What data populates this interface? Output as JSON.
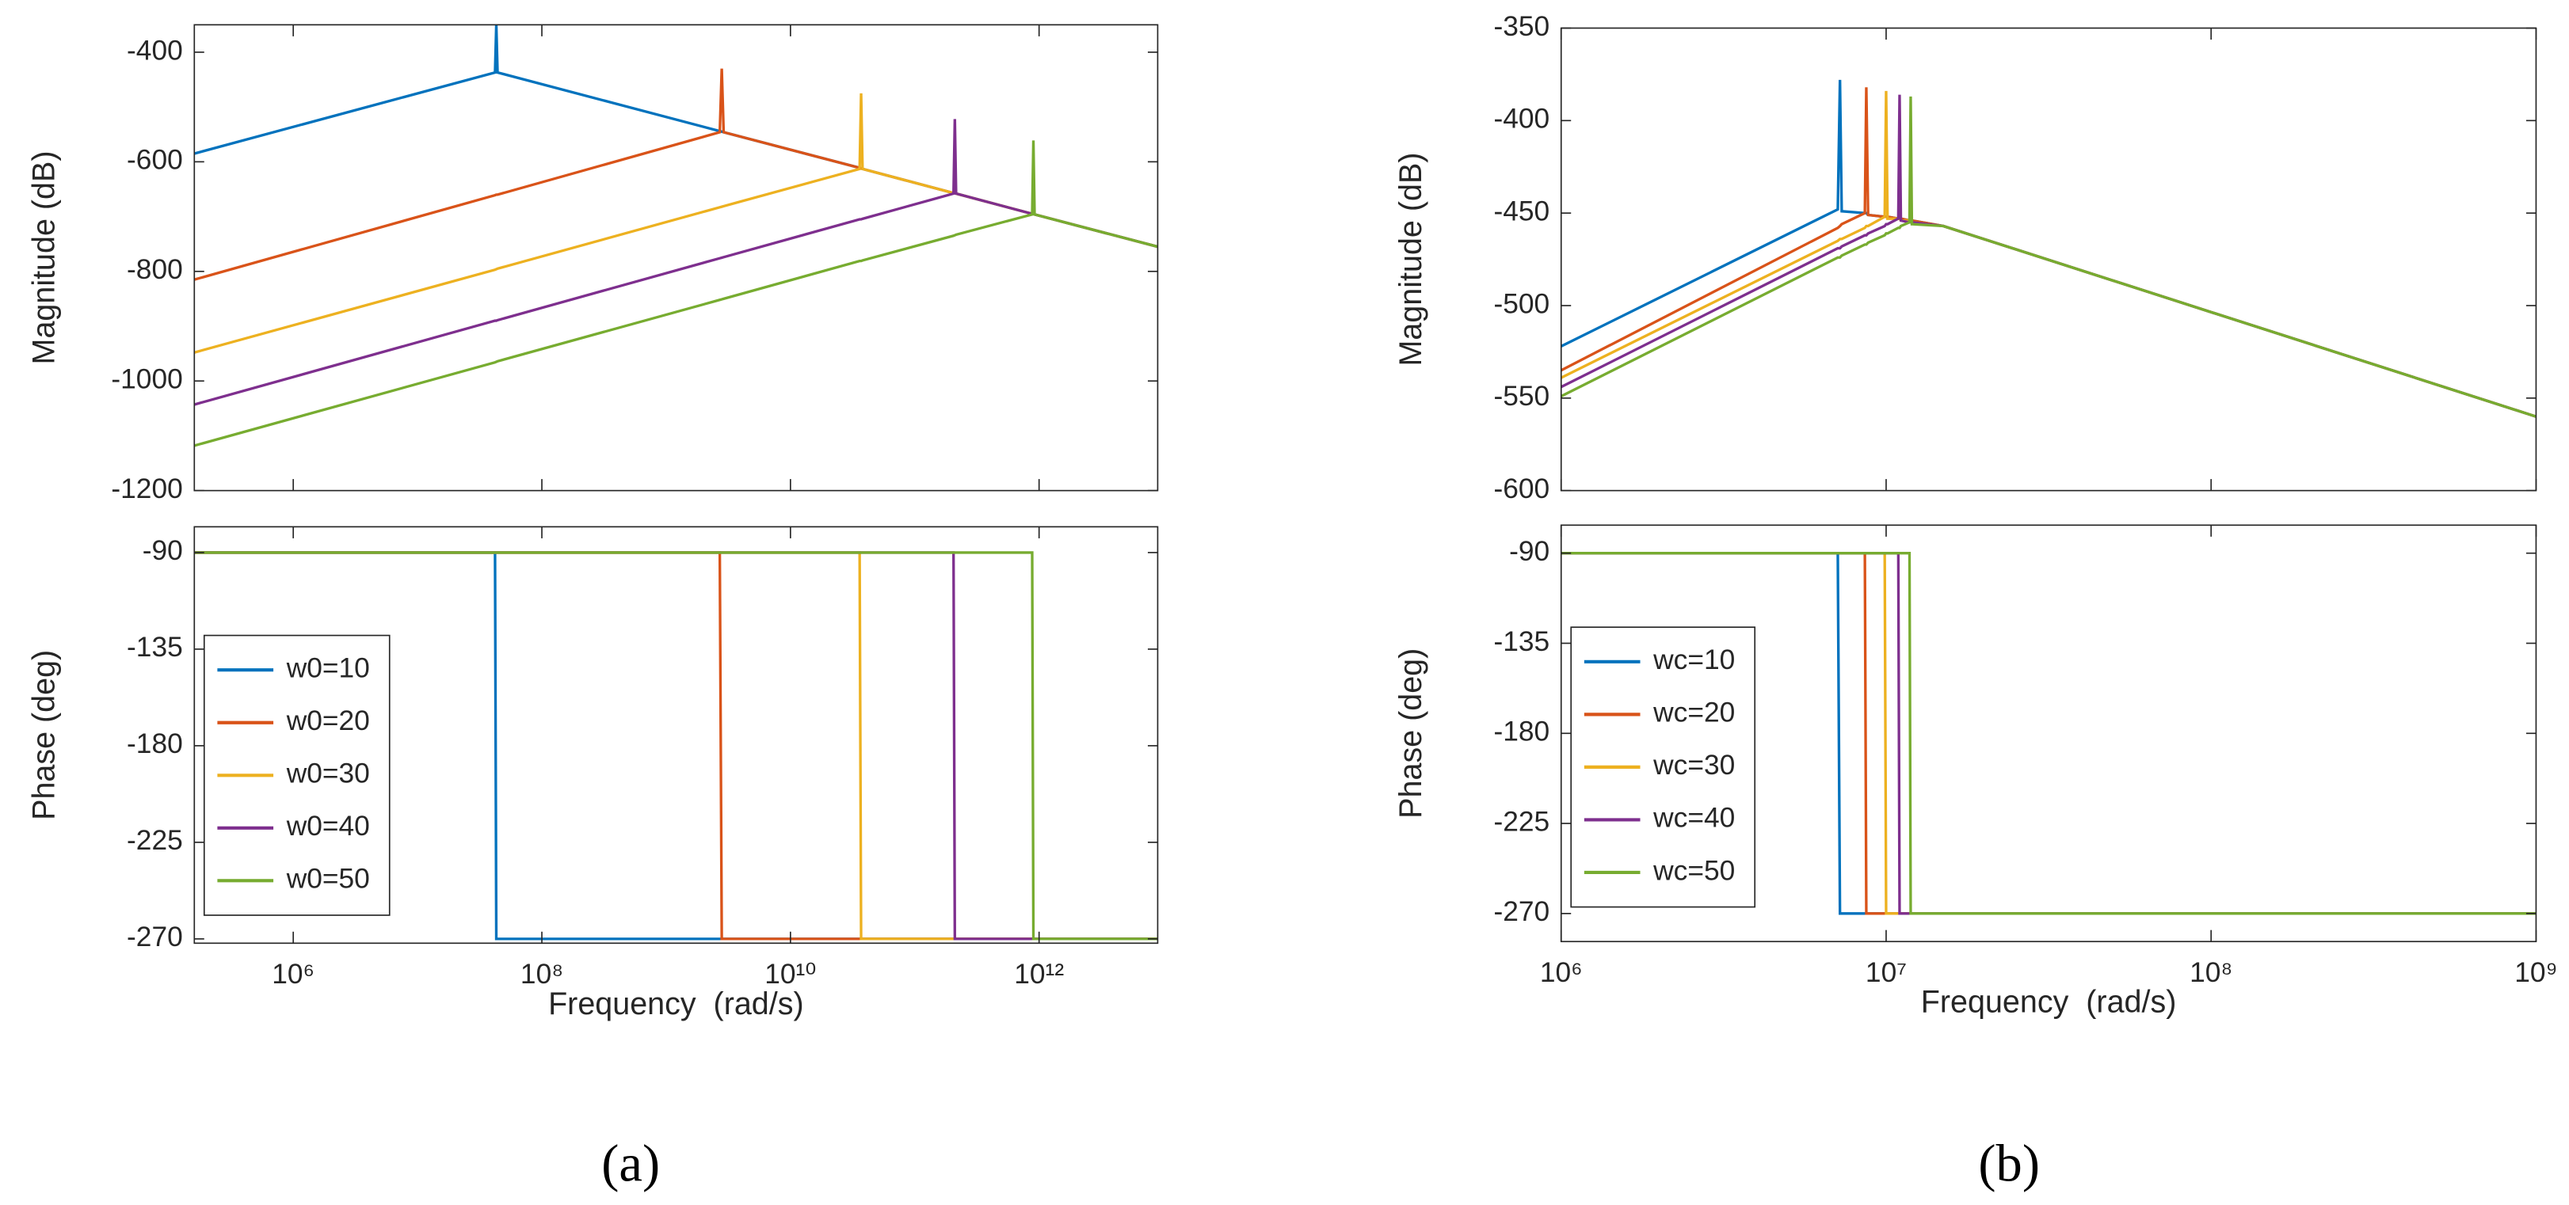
{
  "captions": [
    "(a)",
    "(b)"
  ],
  "chart_data": [
    {
      "type": "line",
      "x_scale": "log",
      "ylabel": "Magnitude (dB)",
      "xlim": [
        160000.0,
        9000000000000.0
      ],
      "ylim": [
        -1200,
        -350
      ],
      "xticks": [
        1000000.0,
        100000000.0,
        10000000000.0,
        1000000000000.0
      ],
      "yticks": [
        -1200,
        -1000,
        -800,
        -600,
        -400
      ],
      "x": [
        160000.0,
        42000000.0,
        43000000.0,
        44000000.0,
        2700000000.0,
        2800000000.0,
        2900000000.0,
        36000000000.0,
        37000000000.0,
        38000000000.0,
        205000000000.0,
        210000000000.0,
        215000000000.0,
        880000000000.0,
        900000000000.0,
        920000000000.0,
        9000000000000.0
      ],
      "series": [
        {
          "color": "#0072bd",
          "values": [
            -585,
            -437,
            -350,
            -437,
            -544,
            -545,
            -546,
            -611,
            -612,
            -613,
            -657,
            -657,
            -658,
            -695,
            -695,
            -696,
            -755
          ]
        },
        {
          "color": "#d95319",
          "values": [
            -815,
            -661,
            -660,
            -660,
            -546,
            -430,
            -546,
            -611,
            -612,
            -613,
            -657,
            -657,
            -658,
            -695,
            -695,
            -696,
            -755
          ]
        },
        {
          "color": "#edb120",
          "values": [
            -948,
            -797,
            -796,
            -795,
            -683,
            -682,
            -681,
            -613,
            -475,
            -613,
            -657,
            -657,
            -658,
            -695,
            -695,
            -696,
            -755
          ]
        },
        {
          "color": "#7e2f8e",
          "values": [
            -1043,
            -890,
            -890,
            -889,
            -776,
            -775,
            -774,
            -705,
            -705,
            -704,
            -658,
            -522,
            -658,
            -695,
            -695,
            -696,
            -755
          ]
        },
        {
          "color": "#77ac30",
          "values": [
            -1118,
            -966,
            -965,
            -964,
            -852,
            -851,
            -850,
            -781,
            -781,
            -780,
            -735,
            -734,
            -733,
            -696,
            -561,
            -696,
            -755
          ]
        }
      ]
    },
    {
      "type": "line",
      "x_scale": "log",
      "ylabel": "Phase (deg)",
      "xlabel": "Frequency  (rad/s)",
      "legend": "lower left",
      "xlim": [
        160000.0,
        9000000000000.0
      ],
      "ylim": [
        -272,
        -78
      ],
      "xticks": [
        {
          "value": 1000000.0,
          "label": "10⁶"
        },
        {
          "value": 100000000.0,
          "label": "10⁸"
        },
        {
          "value": 10000000000.0,
          "label": "10¹⁰"
        },
        {
          "value": 1000000000000.0,
          "label": "10¹²"
        }
      ],
      "yticks": [
        -270,
        -225,
        -180,
        -135,
        -90
      ],
      "x": [
        160000.0,
        42000000.0,
        43000000.0,
        44000000.0,
        2700000000.0,
        2800000000.0,
        2900000000.0,
        36000000000.0,
        37000000000.0,
        38000000000.0,
        205000000000.0,
        210000000000.0,
        215000000000.0,
        880000000000.0,
        900000000000.0,
        920000000000.0,
        9000000000000.0
      ],
      "series": [
        {
          "name": "w0=10",
          "color": "#0072bd",
          "values": [
            -90,
            -90,
            -270,
            -270,
            -270,
            -270,
            -270,
            -270,
            -270,
            -270,
            -270,
            -270,
            -270,
            -270,
            -270,
            -270,
            -270
          ]
        },
        {
          "name": "w0=20",
          "color": "#d95319",
          "values": [
            -90,
            -90,
            -90,
            -90,
            -90,
            -270,
            -270,
            -270,
            -270,
            -270,
            -270,
            -270,
            -270,
            -270,
            -270,
            -270,
            -270
          ]
        },
        {
          "name": "w0=30",
          "color": "#edb120",
          "values": [
            -90,
            -90,
            -90,
            -90,
            -90,
            -90,
            -90,
            -90,
            -270,
            -270,
            -270,
            -270,
            -270,
            -270,
            -270,
            -270,
            -270
          ]
        },
        {
          "name": "w0=40",
          "color": "#7e2f8e",
          "values": [
            -90,
            -90,
            -90,
            -90,
            -90,
            -90,
            -90,
            -90,
            -90,
            -90,
            -90,
            -270,
            -270,
            -270,
            -270,
            -270,
            -270
          ]
        },
        {
          "name": "w0=50",
          "color": "#77ac30",
          "values": [
            -90,
            -90,
            -90,
            -90,
            -90,
            -90,
            -90,
            -90,
            -90,
            -90,
            -90,
            -90,
            -90,
            -90,
            -270,
            -270,
            -270
          ]
        }
      ]
    },
    {
      "type": "line",
      "x_scale": "log",
      "ylabel": "Magnitude (dB)",
      "xlim": [
        1000000.0,
        1000000000.0
      ],
      "ylim": [
        -600,
        -350
      ],
      "xticks": [
        1000000.0,
        10000000.0,
        100000000.0,
        1000000000.0
      ],
      "yticks": [
        -600,
        -550,
        -500,
        -450,
        -400,
        -350
      ],
      "x": [
        1000000.0,
        7100000.0,
        7210000.0,
        7300000.0,
        8600000.0,
        8690000.0,
        8800000.0,
        9900000.0,
        10000000.0,
        10100000.0,
        10900000.0,
        11000000.0,
        11100000.0,
        11800000.0,
        11900000.0,
        12000000.0,
        15000000.0,
        1000000000.0
      ],
      "series": [
        {
          "color": "#0072bd",
          "values": [
            -522,
            -448,
            -378,
            -449,
            -450,
            -450,
            -451,
            -452,
            -452,
            -452,
            -453,
            -453,
            -453,
            -454,
            -454,
            -454,
            -457,
            -560
          ]
        },
        {
          "color": "#d95319",
          "values": [
            -535,
            -458,
            -457,
            -456,
            -450,
            -382,
            -451,
            -452,
            -452,
            -452,
            -453,
            -453,
            -453,
            -454,
            -454,
            -454,
            -457,
            -560
          ]
        },
        {
          "color": "#edb120",
          "values": [
            -539,
            -465,
            -464,
            -464,
            -458,
            -457,
            -457,
            -452,
            -384,
            -453,
            -453,
            -453,
            -454,
            -454,
            -454,
            -455,
            -457,
            -560
          ]
        },
        {
          "color": "#7e2f8e",
          "values": [
            -544,
            -469,
            -469,
            -468,
            -462,
            -462,
            -461,
            -457,
            -456,
            -456,
            -453,
            -386,
            -454,
            -455,
            -455,
            -455,
            -457,
            -560
          ]
        },
        {
          "color": "#77ac30",
          "values": [
            -549,
            -474,
            -474,
            -473,
            -467,
            -467,
            -466,
            -462,
            -461,
            -461,
            -458,
            -458,
            -457,
            -455,
            -387,
            -456,
            -457,
            -560
          ]
        }
      ]
    },
    {
      "type": "line",
      "x_scale": "log",
      "ylabel": "Phase (deg)",
      "xlabel": "Frequency  (rad/s)",
      "legend": "upper left",
      "xlim": [
        1000000.0,
        1000000000.0
      ],
      "ylim": [
        -284,
        -76
      ],
      "xticks": [
        {
          "value": 1000000.0,
          "label": "10⁶"
        },
        {
          "value": 10000000.0,
          "label": "10⁷"
        },
        {
          "value": 100000000.0,
          "label": "10⁸"
        },
        {
          "value": 1000000000.0,
          "label": "10⁹"
        }
      ],
      "yticks": [
        -270,
        -225,
        -180,
        -135,
        -90
      ],
      "x": [
        1000000.0,
        7100000.0,
        7210000.0,
        7300000.0,
        8600000.0,
        8690000.0,
        8800000.0,
        9900000.0,
        10000000.0,
        10100000.0,
        10900000.0,
        11000000.0,
        11100000.0,
        11800000.0,
        11900000.0,
        12000000.0,
        15000000.0,
        1000000000.0
      ],
      "series": [
        {
          "name": "wc=10",
          "color": "#0072bd",
          "values": [
            -90,
            -90,
            -270,
            -270,
            -270,
            -270,
            -270,
            -270,
            -270,
            -270,
            -270,
            -270,
            -270,
            -270,
            -270,
            -270,
            -270,
            -270
          ]
        },
        {
          "name": "wc=20",
          "color": "#d95319",
          "values": [
            -90,
            -90,
            -90,
            -90,
            -90,
            -270,
            -270,
            -270,
            -270,
            -270,
            -270,
            -270,
            -270,
            -270,
            -270,
            -270,
            -270,
            -270
          ]
        },
        {
          "name": "wc=30",
          "color": "#edb120",
          "values": [
            -90,
            -90,
            -90,
            -90,
            -90,
            -90,
            -90,
            -90,
            -270,
            -270,
            -270,
            -270,
            -270,
            -270,
            -270,
            -270,
            -270,
            -270
          ]
        },
        {
          "name": "wc=40",
          "color": "#7e2f8e",
          "values": [
            -90,
            -90,
            -90,
            -90,
            -90,
            -90,
            -90,
            -90,
            -90,
            -90,
            -90,
            -270,
            -270,
            -270,
            -270,
            -270,
            -270,
            -270
          ]
        },
        {
          "name": "wc=50",
          "color": "#77ac30",
          "values": [
            -90,
            -90,
            -90,
            -90,
            -90,
            -90,
            -90,
            -90,
            -90,
            -90,
            -90,
            -90,
            -90,
            -90,
            -270,
            -270,
            -270,
            -270
          ]
        }
      ]
    }
  ]
}
